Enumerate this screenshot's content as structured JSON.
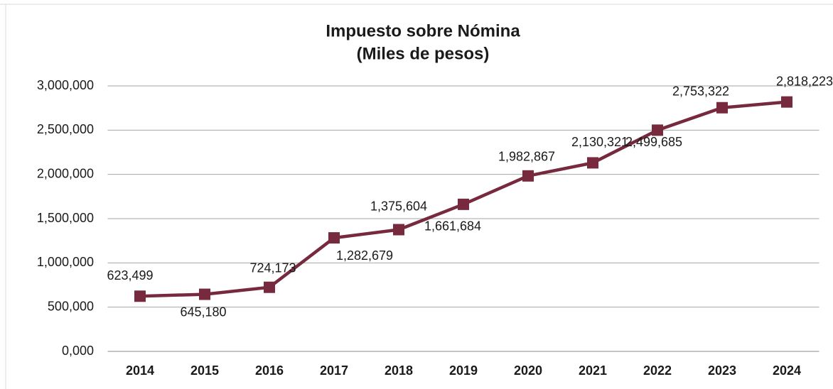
{
  "chart_data": {
    "type": "line",
    "title": "Impuesto sobre Nómina",
    "subtitle": "(Miles de pesos)",
    "categories": [
      "2014",
      "2015",
      "2016",
      "2017",
      "2018",
      "2019",
      "2020",
      "2021",
      "2022",
      "2023",
      "2024"
    ],
    "values": [
      623499,
      645180,
      724173,
      1282679,
      1375604,
      1661684,
      1982867,
      2130321,
      2499685,
      2753322,
      2818223
    ],
    "value_labels": [
      "623,499",
      "645,180",
      "724,173",
      "1,282,679",
      "1,375,604",
      "1,661,684",
      "1,982,867",
      "2,130,321",
      "2,499,685",
      "2,753,322",
      "2,818,223"
    ],
    "color": "#772a3e",
    "ylim": [
      0,
      3000000
    ],
    "yticks": [
      {
        "value": 0,
        "label": "0,000"
      },
      {
        "value": 500000,
        "label": "500,000"
      },
      {
        "value": 1000000,
        "label": "1,000,000"
      },
      {
        "value": 1500000,
        "label": "1,500,000"
      },
      {
        "value": 2000000,
        "label": "2,000,000"
      },
      {
        "value": 2500000,
        "label": "2,500,000"
      },
      {
        "value": 3000000,
        "label": "3,000,000"
      }
    ],
    "grid": true
  }
}
